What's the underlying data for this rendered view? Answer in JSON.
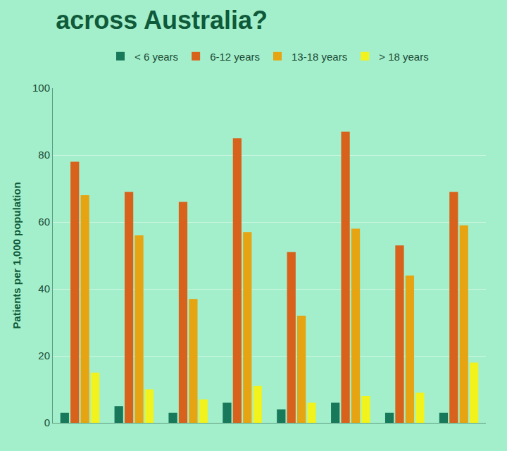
{
  "chart_data": {
    "type": "bar",
    "title": "across Australia?",
    "y_label": "Patients per 1,000 population",
    "categories": [
      null,
      null,
      null,
      null,
      null,
      null,
      null,
      null
    ],
    "series": [
      {
        "name": "< 6 years",
        "color": "#17785a",
        "values": [
          3,
          5,
          3,
          6,
          4,
          6,
          3,
          3
        ]
      },
      {
        "name": "6-12 years",
        "color": "#d8621b",
        "values": [
          78,
          69,
          66,
          85,
          51,
          87,
          53,
          69
        ]
      },
      {
        "name": "13-18 years",
        "color": "#e6a412",
        "values": [
          68,
          56,
          37,
          57,
          32,
          58,
          44,
          59
        ]
      },
      {
        "name": "> 18 years",
        "color": "#f2f21c",
        "values": [
          15,
          10,
          7,
          11,
          6,
          8,
          9,
          18
        ]
      }
    ],
    "ylim": [
      0,
      100
    ],
    "yticks": [
      0,
      20,
      40,
      60,
      80,
      100
    ],
    "grid": true,
    "legend": "top",
    "tick_labels": "y"
  }
}
